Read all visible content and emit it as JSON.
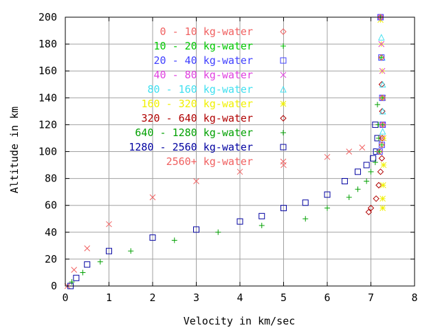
{
  "chart_data": {
    "type": "scatter",
    "title": "",
    "xlabel": "Velocity in km/sec",
    "ylabel": "Altitude in km",
    "xlim": [
      0,
      8
    ],
    "ylim": [
      0,
      200
    ],
    "xticks": [
      0,
      1,
      2,
      3,
      4,
      5,
      6,
      7,
      8
    ],
    "yticks": [
      0,
      20,
      40,
      60,
      80,
      100,
      120,
      140,
      160,
      180,
      200
    ],
    "grid": true,
    "legend_position": "top-left",
    "series": [
      {
        "name": "0 - 10 kg-water",
        "color": "#f06060",
        "marker": "diamond",
        "points": [
          [
            7.22,
            200
          ],
          [
            7.24,
            170
          ],
          [
            7.26,
            140
          ],
          [
            7.27,
            120
          ],
          [
            7.25,
            105
          ],
          [
            7.2,
            100
          ]
        ]
      },
      {
        "name": "10 - 20 kg-water",
        "color": "#00c800",
        "marker": "plus",
        "points": [
          [
            7.22,
            200
          ],
          [
            7.24,
            170
          ],
          [
            7.26,
            140
          ],
          [
            7.27,
            120
          ],
          [
            7.25,
            105
          ],
          [
            7.2,
            100
          ]
        ]
      },
      {
        "name": "20 - 40 kg-water",
        "color": "#4040ff",
        "marker": "square",
        "points": [
          [
            7.22,
            200
          ],
          [
            7.24,
            170
          ],
          [
            7.26,
            140
          ],
          [
            7.27,
            120
          ],
          [
            7.25,
            105
          ],
          [
            7.2,
            100
          ]
        ]
      },
      {
        "name": "40 - 80 kg-water",
        "color": "#e040e0",
        "marker": "cross",
        "points": [
          [
            7.22,
            200
          ],
          [
            7.24,
            180
          ],
          [
            7.26,
            160
          ],
          [
            7.27,
            140
          ],
          [
            7.27,
            120
          ],
          [
            7.26,
            110
          ]
        ]
      },
      {
        "name": "80 - 160 kg-water",
        "color": "#40e0f0",
        "marker": "triangle",
        "points": [
          [
            7.22,
            200
          ],
          [
            7.24,
            185
          ],
          [
            7.26,
            170
          ],
          [
            7.27,
            150
          ],
          [
            7.27,
            130
          ],
          [
            7.27,
            115
          ]
        ]
      },
      {
        "name": "160 - 320 kg-water",
        "color": "#f0f000",
        "marker": "star",
        "points": [
          [
            7.22,
            198
          ],
          [
            7.24,
            180
          ],
          [
            7.26,
            160
          ],
          [
            7.28,
            140
          ],
          [
            7.29,
            110
          ],
          [
            7.29,
            90
          ],
          [
            7.28,
            75
          ],
          [
            7.27,
            65
          ],
          [
            7.27,
            58
          ]
        ]
      },
      {
        "name": "320 - 640 kg-water",
        "color": "#b00000",
        "marker": "diamond",
        "points": [
          [
            7.22,
            200
          ],
          [
            7.24,
            170
          ],
          [
            7.25,
            150
          ],
          [
            7.26,
            130
          ],
          [
            7.26,
            110
          ],
          [
            7.25,
            95
          ],
          [
            7.22,
            85
          ],
          [
            7.18,
            75
          ],
          [
            7.12,
            65
          ],
          [
            7.0,
            58
          ],
          [
            6.95,
            55
          ]
        ]
      },
      {
        "name": "640 - 1280 kg-water",
        "color": "#00a000",
        "marker": "plus",
        "points": [
          [
            7.15,
            135
          ],
          [
            7.17,
            120
          ],
          [
            7.18,
            110
          ],
          [
            7.15,
            100
          ],
          [
            7.1,
            92
          ],
          [
            7.0,
            85
          ],
          [
            6.9,
            78
          ],
          [
            6.7,
            72
          ],
          [
            6.5,
            66
          ],
          [
            6.0,
            58
          ],
          [
            5.5,
            50
          ],
          [
            4.5,
            45
          ],
          [
            3.5,
            40
          ],
          [
            2.5,
            34
          ],
          [
            1.5,
            26
          ],
          [
            0.8,
            18
          ],
          [
            0.4,
            10
          ],
          [
            0.15,
            3
          ]
        ]
      },
      {
        "name": "1280 - 2560 kg-water",
        "color": "#0000a0",
        "marker": "square",
        "points": [
          [
            7.1,
            120
          ],
          [
            7.15,
            110
          ],
          [
            7.12,
            100
          ],
          [
            7.05,
            95
          ],
          [
            6.9,
            90
          ],
          [
            6.7,
            85
          ],
          [
            6.4,
            78
          ],
          [
            6.0,
            68
          ],
          [
            5.5,
            62
          ],
          [
            5.0,
            58
          ],
          [
            4.5,
            52
          ],
          [
            4.0,
            48
          ],
          [
            3.0,
            42
          ],
          [
            2.0,
            36
          ],
          [
            1.0,
            26
          ],
          [
            0.5,
            16
          ],
          [
            0.25,
            6
          ],
          [
            0.12,
            0
          ]
        ]
      },
      {
        "name": "2560+ kg-water",
        "color": "#f06060",
        "marker": "cross",
        "points": [
          [
            6.8,
            103
          ],
          [
            6.5,
            100
          ],
          [
            6.0,
            96
          ],
          [
            5.0,
            90
          ],
          [
            4.0,
            85
          ],
          [
            3.0,
            78
          ],
          [
            2.0,
            66
          ],
          [
            1.0,
            46
          ],
          [
            0.5,
            28
          ],
          [
            0.2,
            12
          ],
          [
            0.05,
            0
          ]
        ]
      }
    ]
  }
}
